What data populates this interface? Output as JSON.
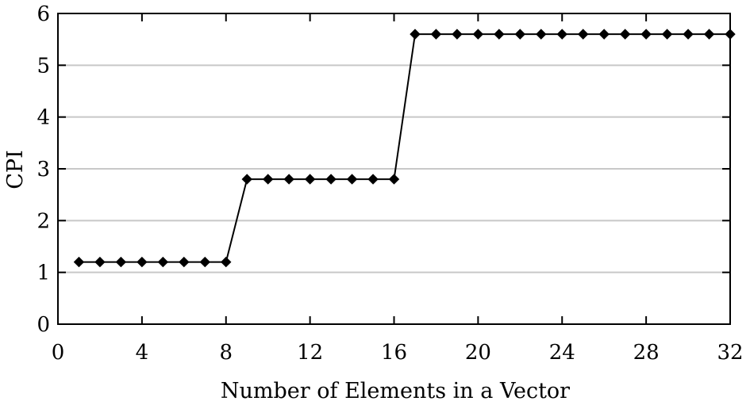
{
  "chart_data": {
    "type": "line",
    "title": "",
    "xlabel": "Number of Elements in a Vector",
    "ylabel": "CPI",
    "xlim": [
      0,
      32
    ],
    "ylim": [
      0,
      6
    ],
    "xticks": [
      0,
      4,
      8,
      12,
      16,
      20,
      24,
      28,
      32
    ],
    "yticks": [
      0,
      1,
      2,
      3,
      4,
      5,
      6
    ],
    "grid": "horizontal",
    "legend": "none",
    "marker": "diamond",
    "line_color": "#000000",
    "grid_color": "#c8c8c8",
    "series": [
      {
        "x": [
          1,
          2,
          3,
          4,
          5,
          6,
          7,
          8,
          9,
          10,
          11,
          12,
          13,
          14,
          15,
          16,
          17,
          18,
          19,
          20,
          21,
          22,
          23,
          24,
          25,
          26,
          27,
          28,
          29,
          30,
          31,
          32
        ],
        "values": [
          1.2,
          1.2,
          1.2,
          1.2,
          1.2,
          1.2,
          1.2,
          1.2,
          2.8,
          2.8,
          2.8,
          2.8,
          2.8,
          2.8,
          2.8,
          2.8,
          5.6,
          5.6,
          5.6,
          5.6,
          5.6,
          5.6,
          5.6,
          5.6,
          5.6,
          5.6,
          5.6,
          5.6,
          5.6,
          5.6,
          5.6,
          5.6
        ]
      }
    ]
  }
}
